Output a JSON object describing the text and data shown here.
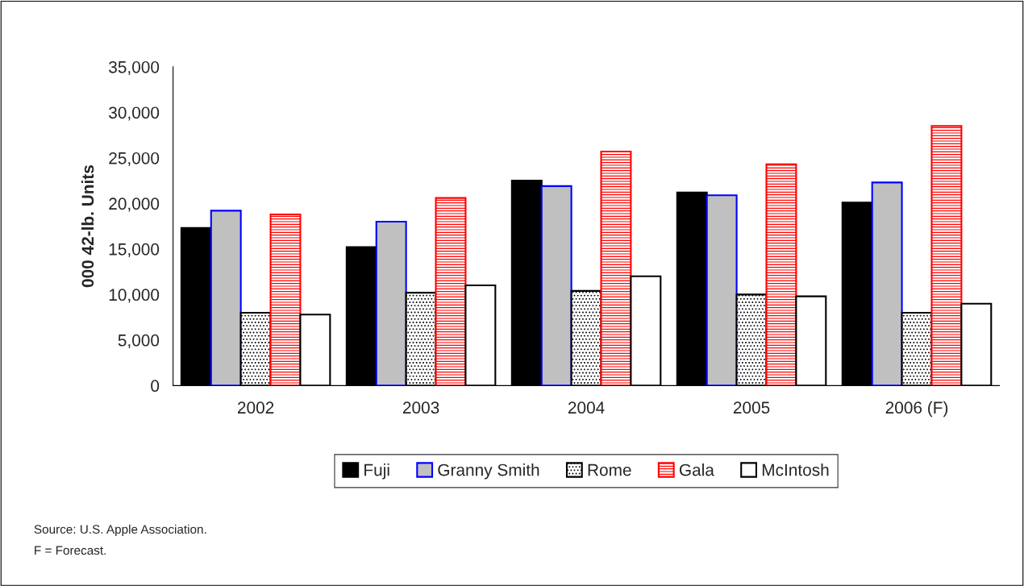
{
  "chart_data": {
    "type": "bar",
    "ylabel": "000 42-lb. Units",
    "categories": [
      "2002",
      "2003",
      "2004",
      "2005",
      "2006 (F)"
    ],
    "series": [
      {
        "name": "Fuji",
        "color": "#000000",
        "values": [
          17300,
          15200,
          22500,
          21200,
          20100
        ]
      },
      {
        "name": "Granny Smith",
        "color": "#c0c0c0",
        "values": [
          19200,
          18000,
          21900,
          20900,
          22300
        ]
      },
      {
        "name": "Rome",
        "color": "#000000",
        "values": [
          8000,
          10200,
          10400,
          10000,
          8000
        ]
      },
      {
        "name": "Gala",
        "color": "#ff0000",
        "values": [
          18800,
          20600,
          25700,
          24300,
          28500
        ]
      },
      {
        "name": "McIntosh",
        "color": "#ffffff",
        "values": [
          7800,
          11000,
          12000,
          9800,
          9000
        ]
      }
    ],
    "ylim": [
      0,
      35000
    ],
    "yticks": [
      0,
      {
        "value": 5000,
        "label": "5,000"
      },
      {
        "value": 10000,
        "label": "10,000"
      },
      {
        "value": 15000,
        "label": "15,000"
      },
      {
        "value": 20000,
        "label": "20,000"
      },
      {
        "value": 25000,
        "label": "25,000"
      },
      {
        "value": 30000,
        "label": "30,000"
      },
      {
        "value": 35000,
        "label": "35,000"
      }
    ],
    "grid": false,
    "legend": "bottom",
    "annotations": [
      "Source: U.S. Apple Association.",
      "F = Forecast."
    ]
  }
}
